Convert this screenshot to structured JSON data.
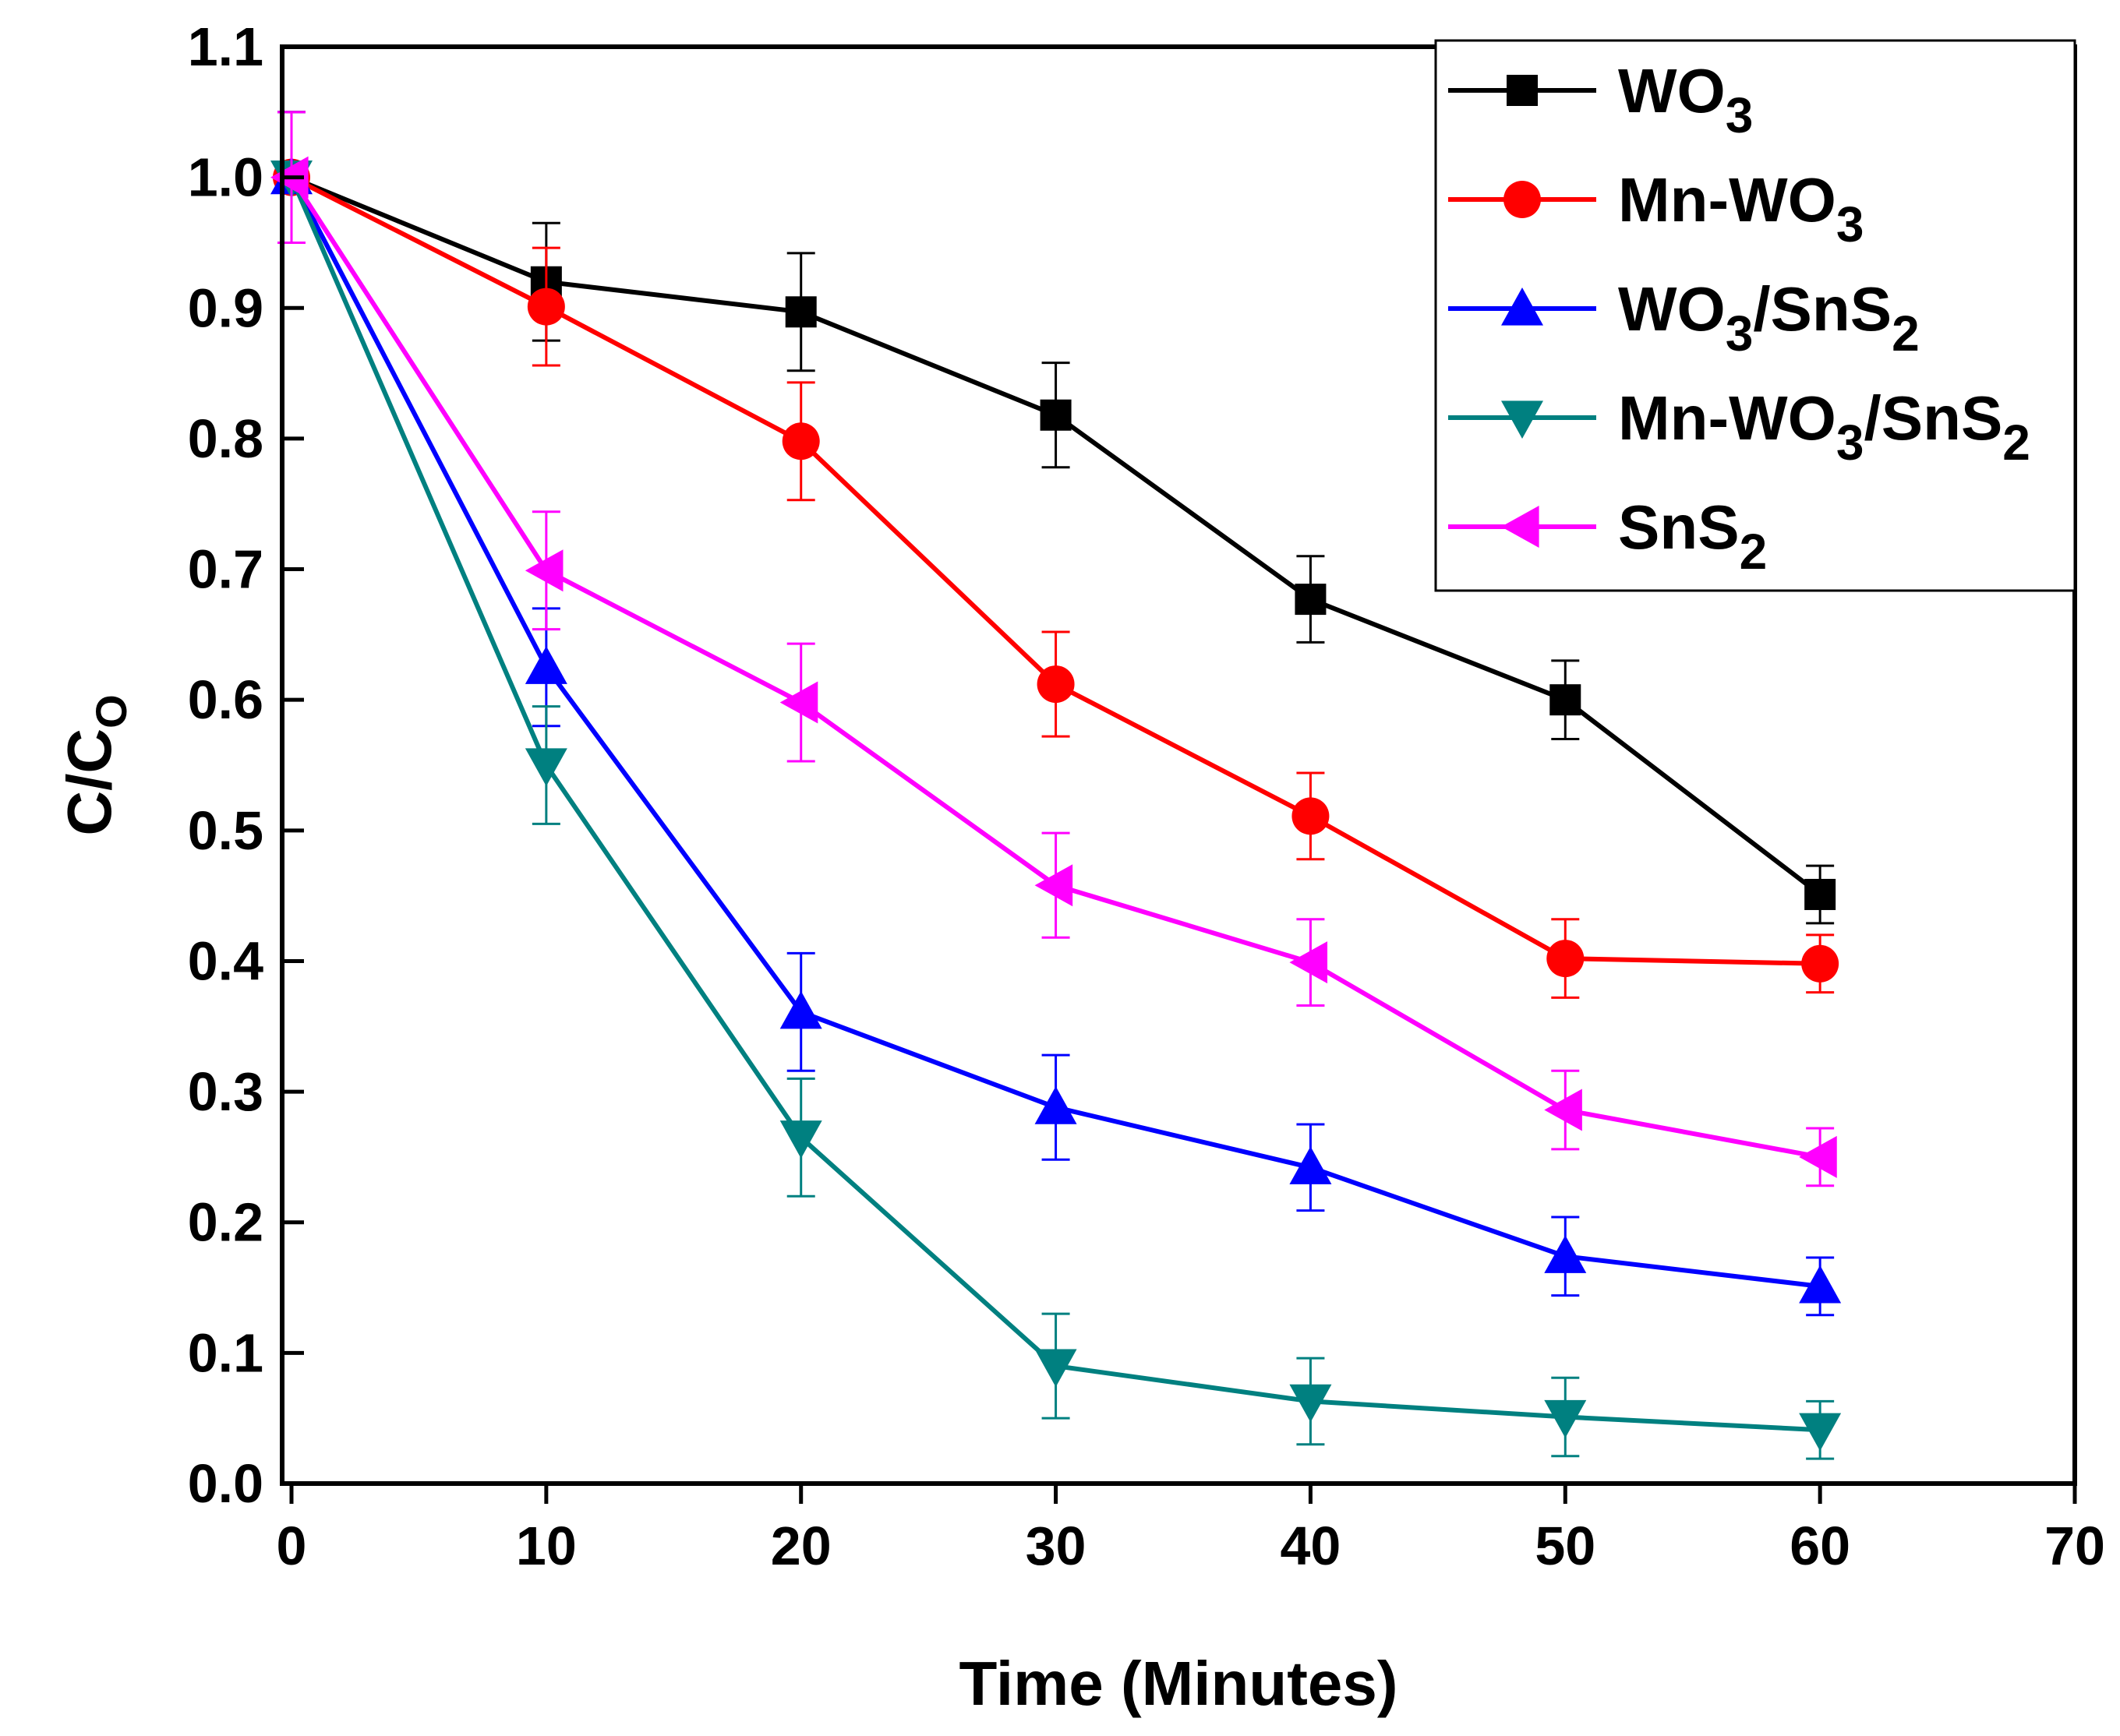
{
  "chart_data": {
    "type": "line",
    "title": "",
    "xlabel": "Time (Minutes)",
    "ylabel": "C/C",
    "ylabel_sub": "O",
    "xlim": [
      0,
      70
    ],
    "ylim": [
      0.0,
      1.1
    ],
    "xticks": [
      "0",
      "10",
      "20",
      "30",
      "40",
      "50",
      "60",
      "70"
    ],
    "yticks": [
      "0.0",
      "0.1",
      "0.2",
      "0.3",
      "0.4",
      "0.5",
      "0.6",
      "0.7",
      "0.8",
      "0.9",
      "1.0",
      "1.1"
    ],
    "grid": false,
    "legend_position": "top-right",
    "x": [
      0,
      10,
      20,
      30,
      40,
      50,
      60
    ],
    "series": [
      {
        "name": "WO3",
        "label_parts": [
          [
            "WO",
            "n"
          ],
          [
            "3",
            "s"
          ]
        ],
        "color": "#000000",
        "marker": "square",
        "values": [
          1.0,
          0.92,
          0.897,
          0.818,
          0.677,
          0.6,
          0.451
        ],
        "errors": [
          0.05,
          0.045,
          0.045,
          0.04,
          0.033,
          0.03,
          0.022
        ]
      },
      {
        "name": "Mn-WO3",
        "label_parts": [
          [
            "Mn-WO",
            "n"
          ],
          [
            "3",
            "s"
          ]
        ],
        "color": "#ff0000",
        "marker": "circle",
        "values": [
          1.0,
          0.901,
          0.798,
          0.612,
          0.511,
          0.402,
          0.398
        ],
        "errors": [
          0.05,
          0.045,
          0.045,
          0.04,
          0.033,
          0.03,
          0.022
        ]
      },
      {
        "name": "WO3/SnS2",
        "label_parts": [
          [
            "WO",
            "n"
          ],
          [
            "3",
            "s"
          ],
          [
            "/SnS",
            "n"
          ],
          [
            "2",
            "s"
          ]
        ],
        "color": "#0000ff",
        "marker": "triangle-up",
        "values": [
          1.0,
          0.625,
          0.361,
          0.288,
          0.242,
          0.174,
          0.151
        ],
        "errors": [
          0.05,
          0.045,
          0.045,
          0.04,
          0.033,
          0.03,
          0.022
        ]
      },
      {
        "name": "Mn-WO3/SnS2",
        "label_parts": [
          [
            "Mn-WO",
            "n"
          ],
          [
            "3",
            "s"
          ],
          [
            "/SnS",
            "n"
          ],
          [
            "2",
            "s"
          ]
        ],
        "color": "#008080",
        "marker": "triangle-down",
        "values": [
          1.0,
          0.55,
          0.265,
          0.09,
          0.063,
          0.051,
          0.041
        ],
        "errors": [
          0.05,
          0.045,
          0.045,
          0.04,
          0.033,
          0.03,
          0.022
        ]
      },
      {
        "name": "SnS2",
        "label_parts": [
          [
            "SnS",
            "n"
          ],
          [
            "2",
            "s"
          ]
        ],
        "color": "#ff00ff",
        "marker": "triangle-left",
        "values": [
          1.0,
          0.699,
          0.598,
          0.458,
          0.399,
          0.286,
          0.25
        ],
        "errors": [
          0.05,
          0.045,
          0.045,
          0.04,
          0.033,
          0.03,
          0.022
        ]
      }
    ]
  }
}
